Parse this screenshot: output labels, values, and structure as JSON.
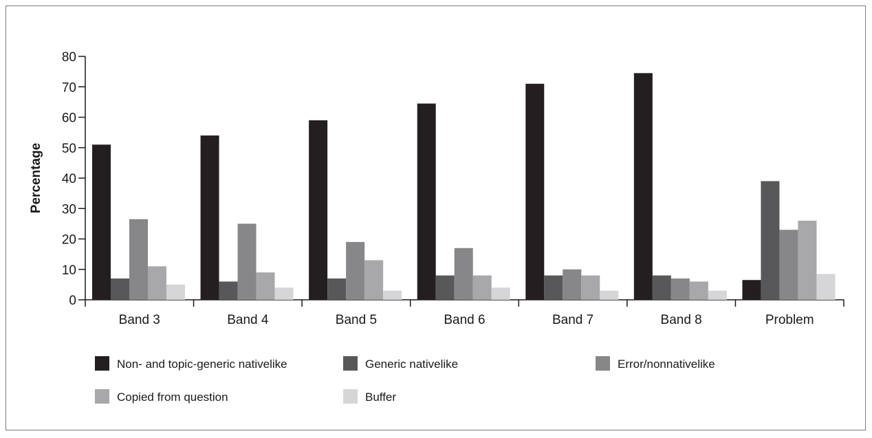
{
  "chart_data": {
    "type": "bar",
    "ylabel": "Percentage",
    "xlabel": "",
    "ylim": [
      0,
      80
    ],
    "yticks": [
      0,
      10,
      20,
      30,
      40,
      50,
      60,
      70,
      80
    ],
    "categories": [
      "Band 3",
      "Band 4",
      "Band 5",
      "Band 6",
      "Band 7",
      "Band 8",
      "Problem"
    ],
    "series": [
      {
        "name": "Non- and topic-generic nativelike",
        "color": "#231f20",
        "values": [
          51,
          54,
          59,
          64.5,
          71,
          74.5,
          6.5
        ]
      },
      {
        "name": "Generic nativelike",
        "color": "#58585a",
        "values": [
          7,
          6,
          7,
          8,
          8,
          8,
          39
        ]
      },
      {
        "name": "Error/nonnativelike",
        "color": "#87878a",
        "values": [
          26.5,
          25,
          19,
          17,
          10,
          7,
          23
        ]
      },
      {
        "name": "Copied from question",
        "color": "#a8a8ab",
        "values": [
          11,
          9,
          13,
          8,
          8,
          6,
          26
        ]
      },
      {
        "name": "Buffer",
        "color": "#d6d6d8",
        "values": [
          5,
          4,
          3,
          4,
          3,
          3,
          8.5
        ]
      }
    ],
    "grid": false,
    "legend_position": "bottom"
  }
}
